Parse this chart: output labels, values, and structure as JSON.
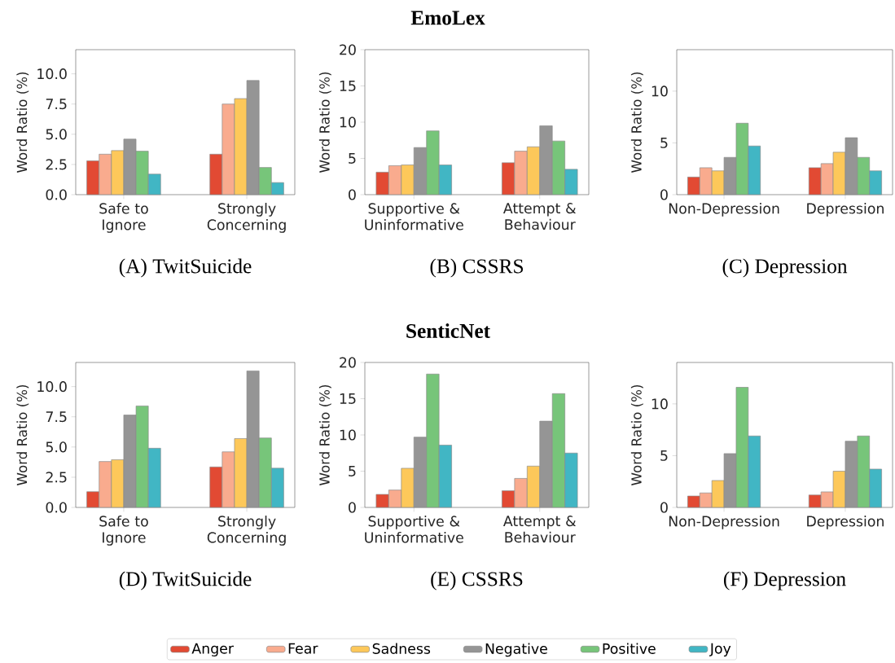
{
  "chart_data": [
    {
      "type": "bar",
      "title": "(A) TwitSuicide",
      "ylabel": "Word Ratio (%)",
      "categories": [
        "Safe to Ignore",
        "Strongly Concerning"
      ],
      "ylim": [
        0,
        12
      ],
      "yticks": [
        {
          "value": 0,
          "label": "0.0"
        },
        {
          "value": 2.5,
          "label": "2.5"
        },
        {
          "value": 5,
          "label": "5.0"
        },
        {
          "value": 7.5,
          "label": "7.5"
        },
        {
          "value": 10,
          "label": "10.0"
        }
      ],
      "series": [
        {
          "color": "#e24a33",
          "values": [
            2.8,
            3.35
          ]
        },
        {
          "color": "#f9ab8e",
          "values": [
            3.35,
            7.5
          ]
        },
        {
          "color": "#fdc85a",
          "values": [
            3.65,
            7.95
          ]
        },
        {
          "color": "#959595",
          "values": [
            4.6,
            9.45
          ]
        },
        {
          "color": "#77c57a",
          "values": [
            3.6,
            2.25
          ]
        },
        {
          "color": "#41b6c4",
          "values": [
            1.7,
            1.0
          ]
        }
      ]
    },
    {
      "type": "bar",
      "title": "(B) CSSRS",
      "annotations": [
        "EmoLex"
      ],
      "ylabel": "Word Ratio (%)",
      "categories": [
        "Supportive & Uninformative",
        "Attempt & Behaviour"
      ],
      "ylim": [
        0,
        20
      ],
      "yticks": [
        0,
        5,
        10,
        15,
        20
      ],
      "series": [
        {
          "color": "#e24a33",
          "values": [
            3.1,
            4.4
          ]
        },
        {
          "color": "#f9ab8e",
          "values": [
            4.0,
            6.0
          ]
        },
        {
          "color": "#fdc85a",
          "values": [
            4.1,
            6.6
          ]
        },
        {
          "color": "#959595",
          "values": [
            6.5,
            9.5
          ]
        },
        {
          "color": "#77c57a",
          "values": [
            8.8,
            7.4
          ]
        },
        {
          "color": "#41b6c4",
          "values": [
            4.1,
            3.5
          ]
        }
      ]
    },
    {
      "type": "bar",
      "title": "(C) Depression",
      "ylabel": "Word Ratio (%)",
      "categories": [
        "Non-Depression",
        "Depression"
      ],
      "ylim": [
        0,
        14
      ],
      "yticks": [
        0,
        5,
        10
      ],
      "series": [
        {
          "color": "#e24a33",
          "values": [
            1.7,
            2.6
          ]
        },
        {
          "color": "#f9ab8e",
          "values": [
            2.6,
            3.0
          ]
        },
        {
          "color": "#fdc85a",
          "values": [
            2.3,
            4.1
          ]
        },
        {
          "color": "#959595",
          "values": [
            3.6,
            5.5
          ]
        },
        {
          "color": "#77c57a",
          "values": [
            6.9,
            3.6
          ]
        },
        {
          "color": "#41b6c4",
          "values": [
            4.7,
            2.3
          ]
        }
      ]
    },
    {
      "type": "bar",
      "title": "(D) TwitSuicide",
      "ylabel": "Word Ratio (%)",
      "categories": [
        "Safe to Ignore",
        "Strongly Concerning"
      ],
      "ylim": [
        0,
        12
      ],
      "yticks": [
        {
          "value": 0,
          "label": "0.0"
        },
        {
          "value": 2.5,
          "label": "2.5"
        },
        {
          "value": 5,
          "label": "5.0"
        },
        {
          "value": 7.5,
          "label": "7.5"
        },
        {
          "value": 10,
          "label": "10.0"
        }
      ],
      "series": [
        {
          "color": "#e24a33",
          "values": [
            1.3,
            3.35
          ]
        },
        {
          "color": "#f9ab8e",
          "values": [
            3.8,
            4.6
          ]
        },
        {
          "color": "#fdc85a",
          "values": [
            3.95,
            5.7
          ]
        },
        {
          "color": "#959595",
          "values": [
            7.65,
            11.3
          ]
        },
        {
          "color": "#77c57a",
          "values": [
            8.4,
            5.75
          ]
        },
        {
          "color": "#41b6c4",
          "values": [
            4.9,
            3.25
          ]
        }
      ]
    },
    {
      "type": "bar",
      "title": "(E) CSSRS",
      "annotations": [
        "SenticNet"
      ],
      "ylabel": "Word Ratio (%)",
      "categories": [
        "Supportive & Uninformative",
        "Attempt & Behaviour"
      ],
      "ylim": [
        0,
        20
      ],
      "yticks": [
        0,
        5,
        10,
        15,
        20
      ],
      "series": [
        {
          "color": "#e24a33",
          "values": [
            1.8,
            2.3
          ]
        },
        {
          "color": "#f9ab8e",
          "values": [
            2.4,
            4.0
          ]
        },
        {
          "color": "#fdc85a",
          "values": [
            5.4,
            5.7
          ]
        },
        {
          "color": "#959595",
          "values": [
            9.7,
            11.9
          ]
        },
        {
          "color": "#77c57a",
          "values": [
            18.4,
            15.7
          ]
        },
        {
          "color": "#41b6c4",
          "values": [
            8.6,
            7.5
          ]
        }
      ]
    },
    {
      "type": "bar",
      "title": "(F) Depression",
      "ylabel": "Word Ratio (%)",
      "categories": [
        "Non-Depression",
        "Depression"
      ],
      "ylim": [
        0,
        14
      ],
      "yticks": [
        0,
        5,
        10
      ],
      "legend": "bottom",
      "series": [
        {
          "name": "Anger",
          "color": "#e24a33",
          "values": [
            1.1,
            1.2
          ]
        },
        {
          "name": "Fear",
          "color": "#f9ab8e",
          "values": [
            1.4,
            1.5
          ]
        },
        {
          "name": "Sadness",
          "color": "#fdc85a",
          "values": [
            2.6,
            3.5
          ]
        },
        {
          "name": "Negative",
          "color": "#959595",
          "values": [
            5.2,
            6.4
          ]
        },
        {
          "name": "Positive",
          "color": "#77c57a",
          "values": [
            11.6,
            6.9
          ]
        },
        {
          "name": "Joy",
          "color": "#41b6c4",
          "values": [
            6.9,
            3.7
          ]
        }
      ]
    }
  ]
}
